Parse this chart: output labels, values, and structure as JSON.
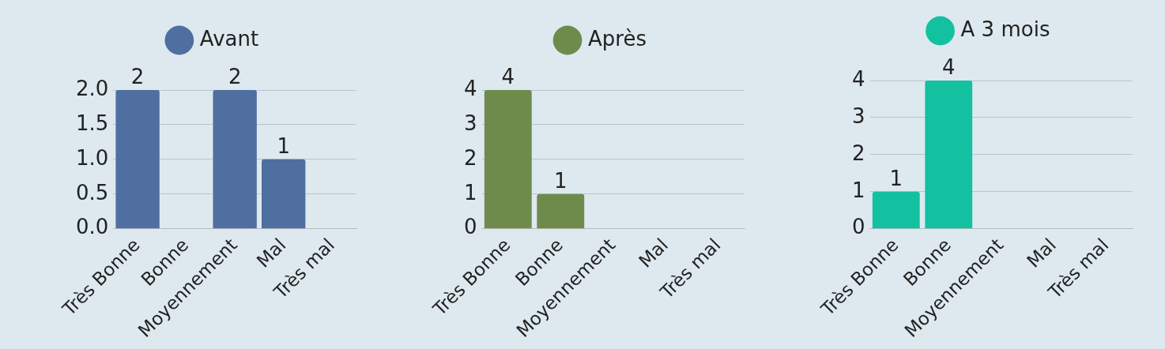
{
  "chart_data": [
    {
      "type": "bar",
      "categories": [
        "Très Bonne",
        "Bonne",
        "Moyennement",
        "Mal",
        "Très mal"
      ],
      "series": [
        {
          "name": "Avant",
          "color": "#4e6fa0",
          "values": [
            2,
            0,
            2,
            1,
            0
          ],
          "value_labels": [
            "2",
            null,
            "2",
            "1",
            null
          ]
        }
      ],
      "ylim": [
        0,
        2
      ],
      "yticks": [
        {
          "value": 0,
          "label": "0.0"
        },
        {
          "value": 0.5,
          "label": "0.5"
        },
        {
          "value": 1,
          "label": "1.0"
        },
        {
          "value": 1.5,
          "label": "1.5"
        },
        {
          "value": 2,
          "label": "2.0"
        }
      ],
      "grid": "y",
      "legend": "top"
    },
    {
      "type": "bar",
      "categories": [
        "Très Bonne",
        "Bonne",
        "Moyennement",
        "Mal",
        "Très mal"
      ],
      "series": [
        {
          "name": "Après",
          "color": "#6e8b4c",
          "values": [
            4,
            1,
            0,
            0,
            0
          ],
          "value_labels": [
            "4",
            "1",
            null,
            null,
            null
          ]
        }
      ],
      "ylim": [
        0,
        4
      ],
      "yticks": [
        0,
        1,
        2,
        3,
        4
      ],
      "grid": "y",
      "legend": "top"
    },
    {
      "type": "bar",
      "categories": [
        "Très Bonne",
        "Bonne",
        "Moyennement",
        "Mal",
        "Très mal"
      ],
      "series": [
        {
          "name": "A 3 mois",
          "color": "#13c1a0",
          "values": [
            1,
            4,
            0,
            0,
            0
          ],
          "value_labels": [
            "1",
            "4",
            null,
            null,
            null
          ]
        }
      ],
      "ylim": [
        0,
        4
      ],
      "yticks": [
        0,
        1,
        2,
        3,
        4
      ],
      "grid": "y",
      "legend": "top"
    }
  ]
}
